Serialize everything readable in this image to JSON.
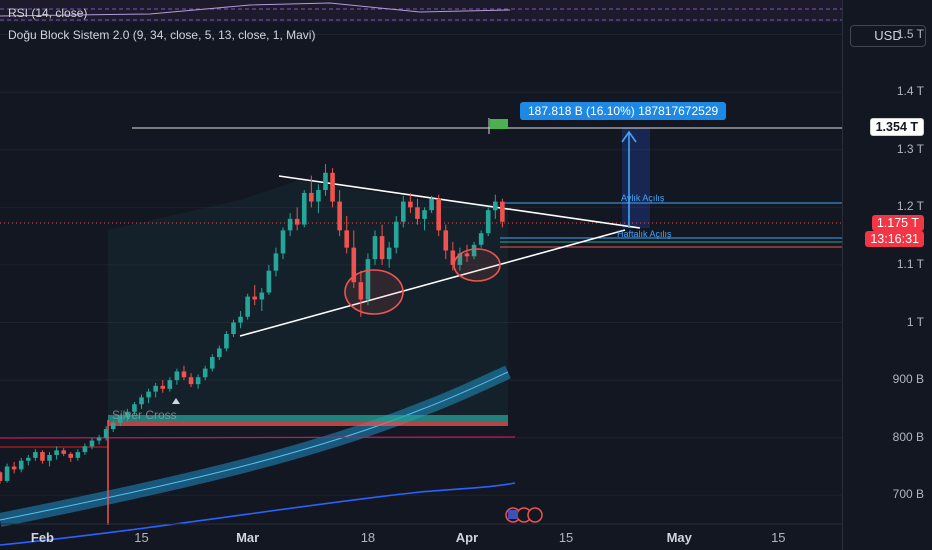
{
  "indicators": {
    "rsi": "RSI (14, close)",
    "dbs": "Doğu Block Sistem 2.0  (9, 34, close, 5, 13, close, 1, Mavi)"
  },
  "currency": "USD",
  "price_tag": {
    "price": "1.175 T",
    "countdown": "13:16:31"
  },
  "target_tag": "1.354 T",
  "measure_label": "187.818 B (16.10%) 187817672529",
  "annotations": {
    "monthly": "Aylık Açılış",
    "weekly": "Haftalık Açılış",
    "cross": "Silver Cross"
  },
  "colors": {
    "up": "#26a69a",
    "down": "#ef5350",
    "accent": "#2962ff",
    "background": "#131722"
  },
  "chart_data": {
    "type": "candlestick",
    "y_scale": "price",
    "ylim": [
      605000000000,
      1560000000000
    ],
    "y_ticks": [
      {
        "value": 1500000000000,
        "label": "1.5 T"
      },
      {
        "value": 1400000000000,
        "label": "1.4 T"
      },
      {
        "value": 1300000000000,
        "label": "1.3 T"
      },
      {
        "value": 1200000000000,
        "label": "1.2 T"
      },
      {
        "value": 1100000000000,
        "label": "1.1 T"
      },
      {
        "value": 1000000000000,
        "label": "1 T"
      },
      {
        "value": 900000000000,
        "label": "900 B"
      },
      {
        "value": 800000000000,
        "label": "800 B"
      },
      {
        "value": 700000000000,
        "label": "700 B"
      }
    ],
    "x_ticks": [
      {
        "date": "2024-02-01",
        "label": "Feb",
        "bold": true
      },
      {
        "date": "2024-02-15",
        "label": "15",
        "bold": false
      },
      {
        "date": "2024-03-01",
        "label": "Mar",
        "bold": true
      },
      {
        "date": "2024-03-18",
        "label": "18",
        "bold": false
      },
      {
        "date": "2024-04-01",
        "label": "Apr",
        "bold": true
      },
      {
        "date": "2024-04-15",
        "label": "15",
        "bold": false
      },
      {
        "date": "2024-05-01",
        "label": "May",
        "bold": true
      },
      {
        "date": "2024-05-15",
        "label": "15",
        "bold": false
      }
    ],
    "x_range": [
      "2024-01-26",
      "2024-05-24"
    ],
    "ohlc_start_date": "2024-01-26",
    "ohlc": [
      [
        740,
        742,
        720,
        725
      ],
      [
        725,
        755,
        722,
        750
      ],
      [
        750,
        758,
        738,
        745
      ],
      [
        745,
        765,
        740,
        760
      ],
      [
        760,
        770,
        752,
        765
      ],
      [
        765,
        780,
        760,
        775
      ],
      [
        775,
        778,
        755,
        760
      ],
      [
        760,
        775,
        750,
        770
      ],
      [
        770,
        785,
        762,
        778
      ],
      [
        778,
        782,
        768,
        772
      ],
      [
        772,
        775,
        758,
        765
      ],
      [
        765,
        780,
        760,
        775
      ],
      [
        775,
        790,
        770,
        785
      ],
      [
        785,
        800,
        780,
        795
      ],
      [
        795,
        805,
        788,
        800
      ],
      [
        800,
        820,
        795,
        815
      ],
      [
        815,
        830,
        810,
        826
      ],
      [
        826,
        840,
        820,
        835
      ],
      [
        835,
        850,
        828,
        845
      ],
      [
        845,
        862,
        840,
        858
      ],
      [
        858,
        875,
        850,
        870
      ],
      [
        870,
        885,
        860,
        880
      ],
      [
        880,
        895,
        870,
        890
      ],
      [
        890,
        900,
        878,
        885
      ],
      [
        885,
        905,
        880,
        900
      ],
      [
        900,
        920,
        892,
        915
      ],
      [
        915,
        925,
        900,
        905
      ],
      [
        905,
        912,
        888,
        893
      ],
      [
        893,
        910,
        885,
        905
      ],
      [
        905,
        925,
        900,
        920
      ],
      [
        920,
        945,
        915,
        940
      ],
      [
        940,
        960,
        935,
        955
      ],
      [
        955,
        985,
        950,
        980
      ],
      [
        980,
        1005,
        975,
        1000
      ],
      [
        1000,
        1020,
        990,
        1010
      ],
      [
        1010,
        1050,
        1005,
        1045
      ],
      [
        1045,
        1065,
        1030,
        1040
      ],
      [
        1040,
        1060,
        1020,
        1052
      ],
      [
        1052,
        1100,
        1048,
        1090
      ],
      [
        1090,
        1130,
        1080,
        1120
      ],
      [
        1120,
        1165,
        1110,
        1160
      ],
      [
        1160,
        1190,
        1150,
        1180
      ],
      [
        1180,
        1200,
        1160,
        1170
      ],
      [
        1170,
        1230,
        1165,
        1225
      ],
      [
        1225,
        1255,
        1200,
        1210
      ],
      [
        1210,
        1240,
        1190,
        1230
      ],
      [
        1230,
        1275,
        1220,
        1260
      ],
      [
        1260,
        1268,
        1200,
        1210
      ],
      [
        1210,
        1230,
        1150,
        1160
      ],
      [
        1160,
        1185,
        1120,
        1130
      ],
      [
        1130,
        1160,
        1060,
        1070
      ],
      [
        1070,
        1090,
        1010,
        1040
      ],
      [
        1040,
        1120,
        1030,
        1110
      ],
      [
        1110,
        1160,
        1100,
        1150
      ],
      [
        1150,
        1170,
        1100,
        1110
      ],
      [
        1110,
        1140,
        1095,
        1130
      ],
      [
        1130,
        1185,
        1120,
        1175
      ],
      [
        1175,
        1220,
        1165,
        1210
      ],
      [
        1210,
        1225,
        1190,
        1200
      ],
      [
        1200,
        1215,
        1170,
        1180
      ],
      [
        1180,
        1200,
        1160,
        1195
      ],
      [
        1195,
        1220,
        1190,
        1215
      ],
      [
        1215,
        1222,
        1150,
        1160
      ],
      [
        1160,
        1170,
        1110,
        1125
      ],
      [
        1125,
        1140,
        1090,
        1100
      ],
      [
        1100,
        1130,
        1090,
        1120
      ],
      [
        1120,
        1135,
        1105,
        1115
      ],
      [
        1115,
        1140,
        1110,
        1135
      ],
      [
        1135,
        1160,
        1130,
        1155
      ],
      [
        1155,
        1200,
        1150,
        1195
      ],
      [
        1195,
        1222,
        1180,
        1210
      ],
      [
        1210,
        1215,
        1165,
        1175
      ]
    ],
    "level_lines": [
      {
        "price": 1354000000000,
        "label": "1.354 T"
      }
    ]
  }
}
